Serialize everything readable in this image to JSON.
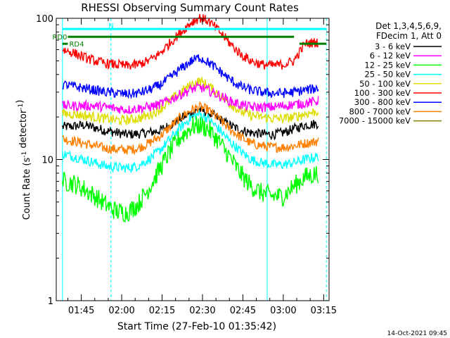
{
  "chart_data": {
    "type": "line",
    "title": "RHESSI Observing Summary Count Rates",
    "xlabel": "Start Time (27-Feb-10 01:35:42)",
    "ylabel": "Count Rate (s⁻¹ detector⁻¹)",
    "yscale": "log",
    "ylim": [
      1,
      100
    ],
    "xlim": [
      "01:35:42",
      "03:17:00"
    ],
    "y_ticks": [
      "1",
      "10",
      "100"
    ],
    "x_ticks": [
      "01:45",
      "02:00",
      "02:15",
      "02:30",
      "02:45",
      "03:00",
      "03:15"
    ],
    "grid": false,
    "legend_position": "right",
    "legend_header": [
      "Det 1,3,4,5,6,9,",
      "FDecim 1, Att 0"
    ],
    "footer_timestamp": "14-Oct-2021 09:45",
    "series": [
      {
        "name": "3 - 6 keV",
        "color": "#000000",
        "x": [
          "01:38",
          "01:42",
          "01:46",
          "01:50",
          "01:54",
          "01:58",
          "02:02",
          "02:06",
          "02:10",
          "02:14",
          "02:18",
          "02:22",
          "02:26",
          "02:29",
          "02:32",
          "02:36",
          "02:40",
          "02:44",
          "02:48",
          "02:52",
          "02:56",
          "03:00",
          "03:04",
          "03:08",
          "03:13"
        ],
        "values": [
          17,
          17.2,
          17.5,
          16.8,
          16,
          15.5,
          15,
          15.2,
          15.5,
          16,
          17.5,
          19.5,
          21.5,
          22.5,
          21.5,
          19.5,
          17.5,
          16.2,
          15.5,
          15.2,
          15,
          15.5,
          16.5,
          17.5,
          18
        ]
      },
      {
        "name": "6 - 12 keV",
        "color": "#ff00ff",
        "x": [
          "01:38",
          "01:42",
          "01:46",
          "01:50",
          "01:54",
          "01:58",
          "02:02",
          "02:06",
          "02:10",
          "02:14",
          "02:18",
          "02:22",
          "02:26",
          "02:29",
          "02:32",
          "02:36",
          "02:40",
          "02:44",
          "02:48",
          "02:52",
          "02:56",
          "03:00",
          "03:04",
          "03:08",
          "03:13"
        ],
        "values": [
          24,
          24,
          24,
          24,
          23.5,
          23,
          22.5,
          23,
          23.5,
          24.5,
          26.5,
          29,
          31.5,
          32.5,
          31,
          28.5,
          26,
          24.5,
          23.5,
          23.5,
          23.5,
          24,
          24.5,
          25,
          26
        ]
      },
      {
        "name": "12 - 25 keV",
        "color": "#00ff00",
        "x": [
          "01:38",
          "01:42",
          "01:46",
          "01:50",
          "01:54",
          "01:58",
          "02:02",
          "02:06",
          "02:10",
          "02:14",
          "02:18",
          "02:22",
          "02:26",
          "02:29",
          "02:32",
          "02:36",
          "02:40",
          "02:44",
          "02:48",
          "02:52",
          "02:56",
          "03:00",
          "03:04",
          "03:08",
          "03:13"
        ],
        "values": [
          7,
          6.8,
          6.2,
          5.5,
          4.8,
          4.3,
          4.2,
          4.8,
          6.2,
          8.5,
          11.5,
          14.5,
          17,
          17.5,
          16.5,
          13.5,
          10.5,
          8,
          6.5,
          5.8,
          5.5,
          5.5,
          6.5,
          7.5,
          8
        ]
      },
      {
        "name": "25 - 50 keV",
        "color": "#00ffff",
        "x": [
          "01:38",
          "01:42",
          "01:46",
          "01:50",
          "01:54",
          "01:58",
          "02:02",
          "02:06",
          "02:10",
          "02:14",
          "02:18",
          "02:22",
          "02:26",
          "02:29",
          "02:32",
          "02:36",
          "02:40",
          "02:44",
          "02:48",
          "02:52",
          "02:56",
          "03:00",
          "03:04",
          "03:08",
          "03:13"
        ],
        "values": [
          11,
          10.5,
          10,
          9.5,
          9,
          8.8,
          8.7,
          9,
          10,
          11.5,
          14,
          17,
          20,
          21,
          19.5,
          16.5,
          13.5,
          11.5,
          10,
          9.5,
          9.2,
          9.2,
          9.5,
          10,
          10.5
        ]
      },
      {
        "name": "50 - 100 keV",
        "color": "#dddd00",
        "x": [
          "01:38",
          "01:42",
          "01:46",
          "01:50",
          "01:54",
          "01:58",
          "02:02",
          "02:06",
          "02:10",
          "02:14",
          "02:18",
          "02:22",
          "02:26",
          "02:29",
          "02:32",
          "02:36",
          "02:40",
          "02:44",
          "02:48",
          "02:52",
          "02:56",
          "03:00",
          "03:04",
          "03:08",
          "03:13"
        ],
        "values": [
          21,
          21,
          20.5,
          20,
          19.5,
          19,
          19,
          19.5,
          20.5,
          22.5,
          26,
          30,
          34,
          36,
          33.5,
          29,
          25,
          22,
          20.5,
          20,
          19.5,
          19.5,
          20,
          21,
          22
        ]
      },
      {
        "name": "100 - 300 keV",
        "color": "#ff0000",
        "x": [
          "01:38",
          "01:42",
          "01:46",
          "01:50",
          "01:54",
          "01:58",
          "02:02",
          "02:06",
          "02:10",
          "02:14",
          "02:18",
          "02:22",
          "02:26",
          "02:29",
          "02:32",
          "02:36",
          "02:40",
          "02:44",
          "02:48",
          "02:52",
          "02:56",
          "03:00",
          "03:04",
          "03:08",
          "03:13"
        ],
        "values": [
          60,
          57,
          53,
          50,
          48,
          47,
          46,
          47,
          50,
          56,
          67,
          80,
          94,
          101,
          96,
          82,
          67,
          56,
          50,
          47,
          46.5,
          47,
          50,
          66,
          68
        ]
      },
      {
        "name": "300 - 800 keV",
        "color": "#0000ff",
        "x": [
          "01:38",
          "01:42",
          "01:46",
          "01:50",
          "01:54",
          "01:58",
          "02:02",
          "02:06",
          "02:10",
          "02:14",
          "02:18",
          "02:22",
          "02:26",
          "02:29",
          "02:32",
          "02:36",
          "02:40",
          "02:44",
          "02:48",
          "02:52",
          "02:56",
          "03:00",
          "03:04",
          "03:08",
          "03:13"
        ],
        "values": [
          34,
          33,
          32,
          31,
          30,
          29.5,
          29,
          29.5,
          31,
          33.5,
          38,
          44,
          50,
          53,
          49,
          43,
          37,
          33,
          31,
          30,
          29.5,
          29.5,
          30,
          31,
          32
        ]
      },
      {
        "name": "800 - 7000 keV",
        "color": "#ff8000",
        "x": [
          "01:38",
          "01:42",
          "01:46",
          "01:50",
          "01:54",
          "01:58",
          "02:02",
          "02:06",
          "02:10",
          "02:14",
          "02:18",
          "02:22",
          "02:26",
          "02:29",
          "02:32",
          "02:36",
          "02:40",
          "02:44",
          "02:48",
          "02:52",
          "02:56",
          "03:00",
          "03:04",
          "03:08",
          "03:13"
        ],
        "values": [
          14,
          13.5,
          13,
          12.5,
          12,
          11.8,
          11.7,
          12,
          13,
          14.5,
          17,
          20,
          22.5,
          23.5,
          22.5,
          19.5,
          16.5,
          14.5,
          13,
          12.5,
          12.2,
          12.2,
          12.5,
          13,
          13.5
        ]
      },
      {
        "name": "7000 - 15000 keV",
        "color": "#808000",
        "x": [],
        "values": []
      }
    ],
    "annotations": [
      {
        "label": "RD0",
        "color": "#008000",
        "y": 74,
        "x_start": "01:40",
        "x_end": "03:04"
      },
      {
        "label": "RD4",
        "color": "#008000",
        "y": 66,
        "x_start": "01:38",
        "x_end": "01:40"
      },
      {
        "label": "",
        "color": "#008000",
        "y": 66,
        "x_start": "03:06",
        "x_end": "03:16"
      },
      {
        "label": "N",
        "color": "#00ffff",
        "y": 84,
        "x_start": "01:38",
        "x_end": "03:16"
      }
    ],
    "vertical_markers": [
      {
        "x": "01:38",
        "color": "#00ffff",
        "style": "solid"
      },
      {
        "x": "01:56",
        "color": "#00ffff",
        "style": "dashed"
      },
      {
        "x": "02:54",
        "color": "#00ffff",
        "style": "solid"
      },
      {
        "x": "03:16",
        "color": "#00ffff",
        "style": "dashed"
      }
    ]
  }
}
